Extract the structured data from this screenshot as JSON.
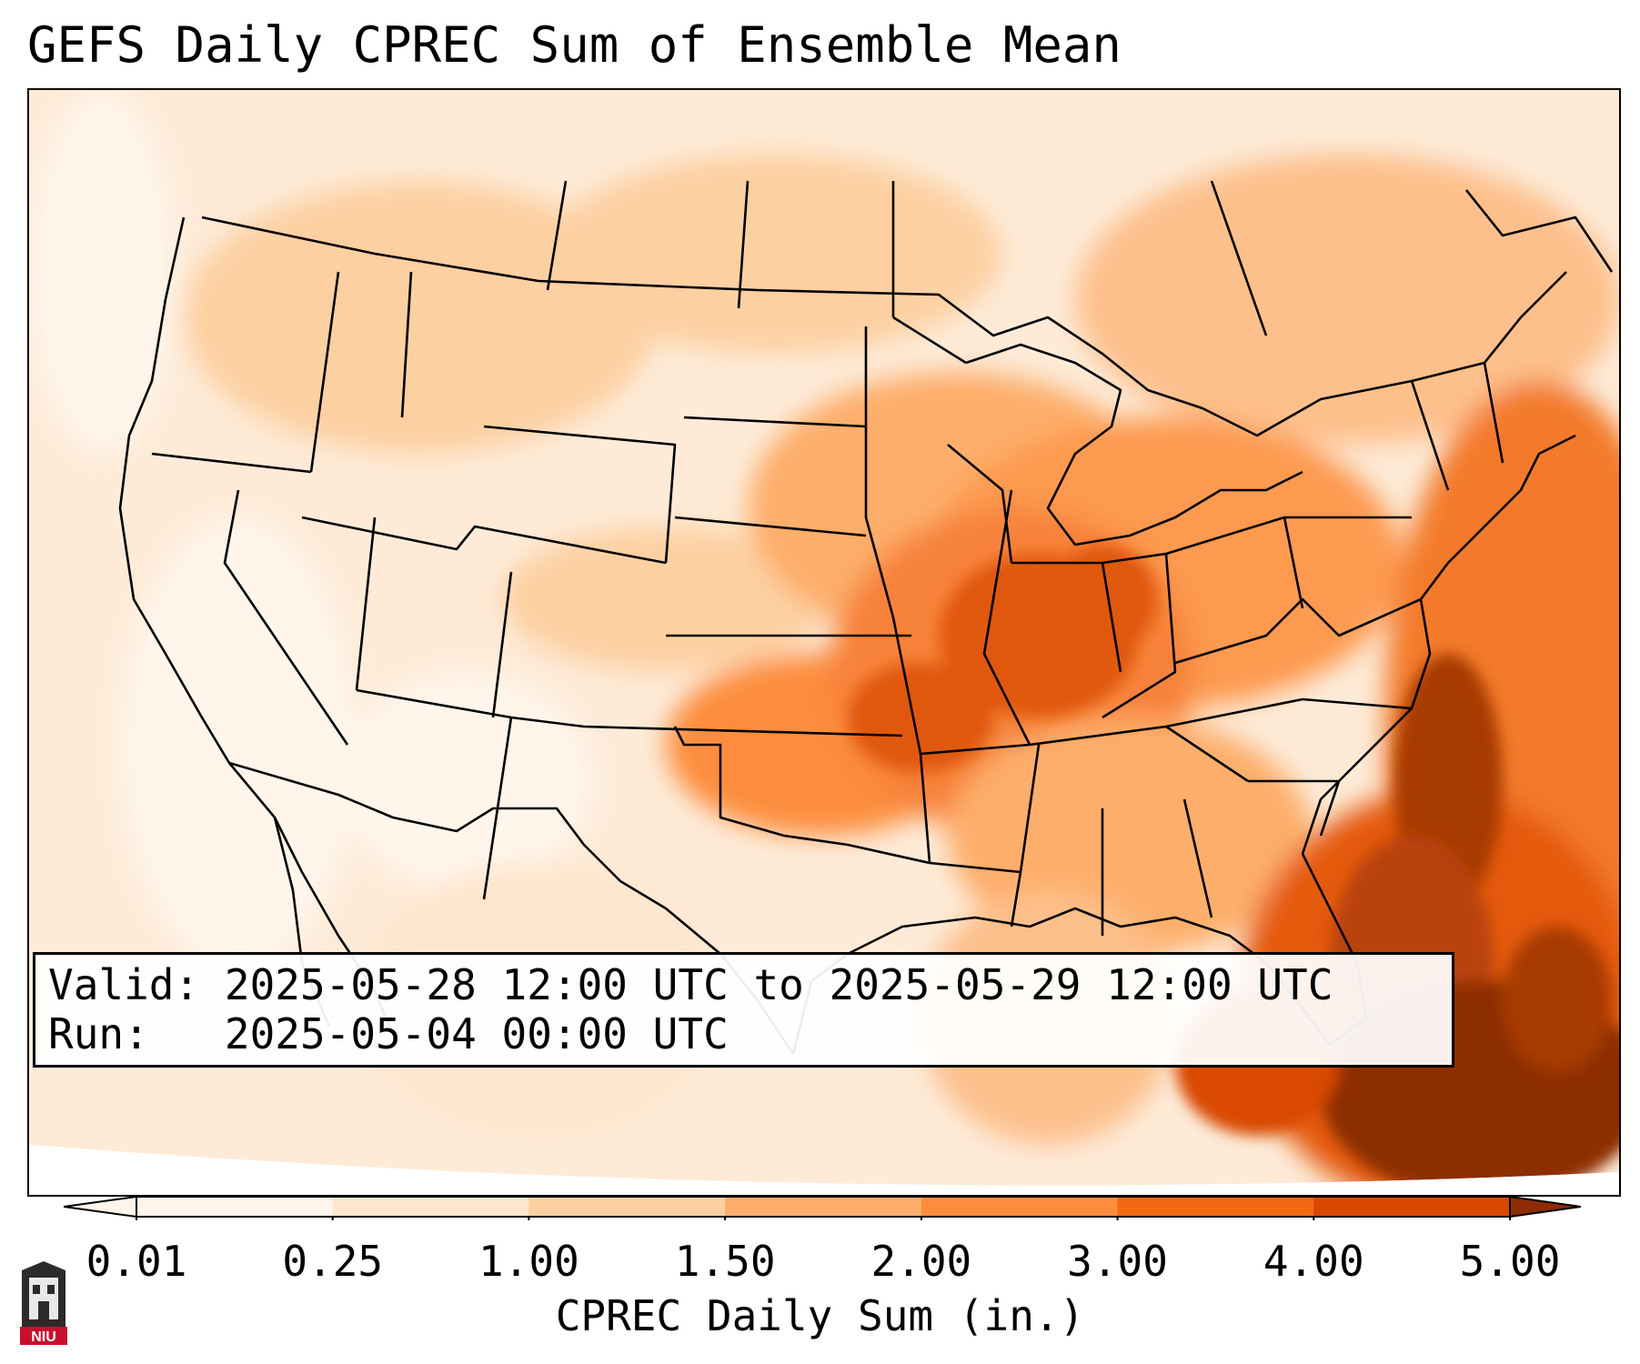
{
  "title": "GEFS Daily CPREC Sum of Ensemble Mean",
  "info": {
    "valid_label": "Valid:",
    "valid_value": "2025-05-28 12:00 UTC to 2025-05-29 12:00 UTC",
    "run_label": "Run:",
    "run_value": "2025-05-04 00:00 UTC"
  },
  "colorbar": {
    "label": "CPREC Daily Sum (in.)",
    "ticks": [
      "0.01",
      "0.25",
      "1.00",
      "1.50",
      "2.00",
      "3.00",
      "4.00",
      "5.00"
    ],
    "colors": [
      "#fff5eb",
      "#fee6ce",
      "#fdd0a2",
      "#fdae6b",
      "#fd8d3c",
      "#f16913",
      "#d94801",
      "#8c2d04"
    ],
    "extend": "both"
  },
  "logo": {
    "text": "NIU",
    "name": "niu-logo"
  },
  "map": {
    "projection": "lambert-conformal",
    "region": "CONUS",
    "features": [
      "coastlines",
      "country borders",
      "state borders"
    ],
    "heavy_precip_regions": [
      "mid-mississippi-valley",
      "ohio-valley",
      "southeast-atlantic-coast",
      "florida-bahamas"
    ]
  }
}
